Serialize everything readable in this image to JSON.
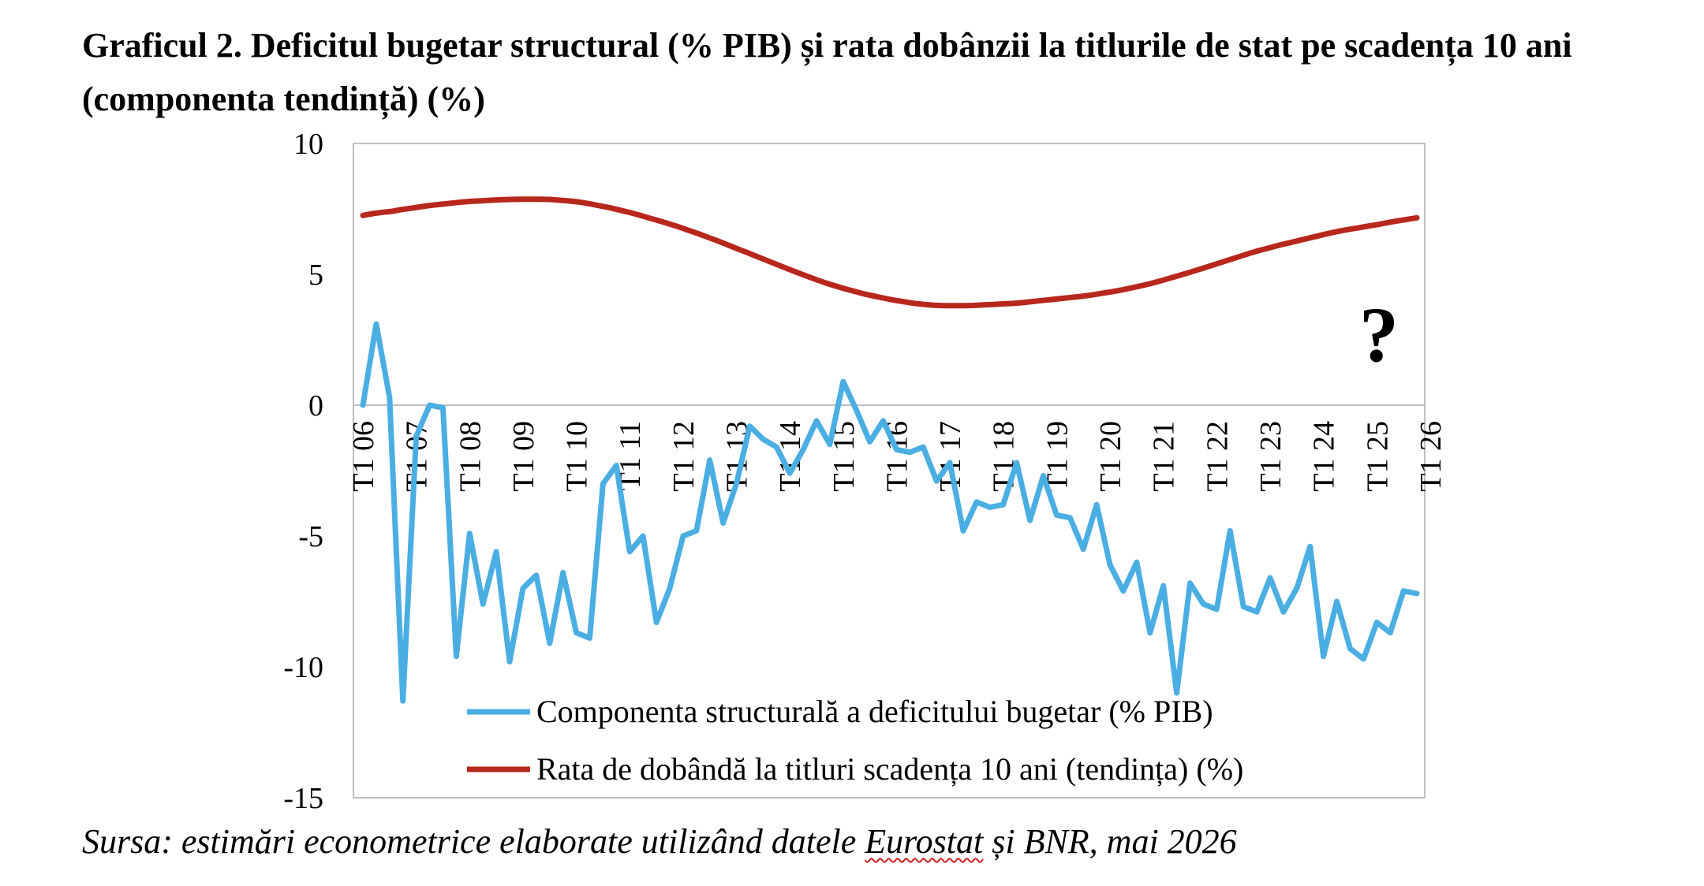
{
  "title": "Graficul 2. Deficitul bugetar structural (% PIB) și rata dobânzii la titlurile de stat pe scadența 10 ani (componenta tendință) (%)",
  "source": {
    "before": "Sursa: estimări econometrice elaborate utilizând datele ",
    "underlined": "Eurostat",
    "after": " și BNR, mai 2026"
  },
  "chart_data": {
    "type": "line",
    "ylim": [
      -15,
      10
    ],
    "yticks": [
      10,
      5,
      0,
      -5,
      -10,
      -15
    ],
    "grid": false,
    "legend_position": "bottom-inside",
    "annotation": "?",
    "x_tick_labels": [
      "T1 06",
      "T1 07",
      "T1 08",
      "T1 09",
      "T1 10",
      "T1 11",
      "T1 12",
      "T1 13",
      "T1 14",
      "T1 15",
      "T1 16",
      "T1 17",
      "T1 18",
      "T1 19",
      "T1 20",
      "T1 21",
      "T1 22",
      "T1 23",
      "T1 24",
      "T1 25",
      "T1 26"
    ],
    "x_tick_indices": [
      0,
      4,
      8,
      12,
      16,
      20,
      24,
      28,
      32,
      36,
      40,
      44,
      48,
      52,
      56,
      60,
      64,
      68,
      72,
      76,
      80
    ],
    "series": [
      {
        "name": "Componenta structurală a deficitului bugetar (% PIB)",
        "color": "#4aaee3",
        "values": [
          0.0,
          3.1,
          0.3,
          -11.3,
          -1.2,
          0.0,
          -0.1,
          -9.6,
          -4.9,
          -7.6,
          -5.6,
          -9.8,
          -7.0,
          -6.5,
          -9.1,
          -6.4,
          -8.7,
          -8.9,
          -3.0,
          -2.3,
          -5.6,
          -5.0,
          -8.3,
          -7.0,
          -5.0,
          -4.8,
          -2.1,
          -4.5,
          -3.0,
          -0.8,
          -1.3,
          -1.6,
          -2.6,
          -1.7,
          -0.6,
          -1.5,
          0.9,
          -0.2,
          -1.4,
          -0.6,
          -1.7,
          -1.8,
          -1.6,
          -2.9,
          -2.2,
          -4.8,
          -3.7,
          -3.9,
          -3.8,
          -2.2,
          -4.4,
          -2.7,
          -4.2,
          -4.3,
          -5.5,
          -3.8,
          -6.1,
          -7.1,
          -6.0,
          -8.7,
          -6.9,
          -11.0,
          -6.8,
          -7.6,
          -7.8,
          -4.8,
          -7.7,
          -7.9,
          -6.6,
          -7.9,
          -7.0,
          -5.4,
          -9.6,
          -7.5,
          -9.3,
          -9.7,
          -8.3,
          -8.7,
          -7.1,
          -7.2
        ]
      },
      {
        "name": "Rata de dobândă la titluri scadența 10 ani (tendința) (%)",
        "color": "#b8271c",
        "values": [
          7.25,
          7.32,
          7.37,
          7.41,
          7.48,
          7.53,
          7.59,
          7.64,
          7.68,
          7.72,
          7.76,
          7.79,
          7.81,
          7.83,
          7.85,
          7.86,
          7.87,
          7.87,
          7.87,
          7.86,
          7.83,
          7.8,
          7.76,
          7.7,
          7.62,
          7.55,
          7.46,
          7.37,
          7.27,
          7.16,
          7.05,
          6.94,
          6.82,
          6.69,
          6.56,
          6.42,
          6.28,
          6.13,
          5.98,
          5.83,
          5.68,
          5.53,
          5.38,
          5.23,
          5.08,
          4.94,
          4.8,
          4.67,
          4.55,
          4.44,
          4.34,
          4.24,
          4.16,
          4.08,
          4.01,
          3.95,
          3.89,
          3.85,
          3.82,
          3.8,
          3.8,
          3.8,
          3.81,
          3.83,
          3.85,
          3.87,
          3.89,
          3.92,
          3.96,
          4.0,
          4.04,
          4.08,
          4.12,
          4.16,
          4.21,
          4.27,
          4.33,
          4.4,
          4.48,
          4.56,
          4.65,
          4.75,
          4.86,
          4.97,
          5.08,
          5.2,
          5.32,
          5.44,
          5.56,
          5.68,
          5.8,
          5.91,
          6.01,
          6.11,
          6.2,
          6.29,
          6.38,
          6.47,
          6.56,
          6.64,
          6.71,
          6.77,
          6.84,
          6.9,
          6.97,
          7.04,
          7.1,
          7.16
        ]
      }
    ]
  }
}
